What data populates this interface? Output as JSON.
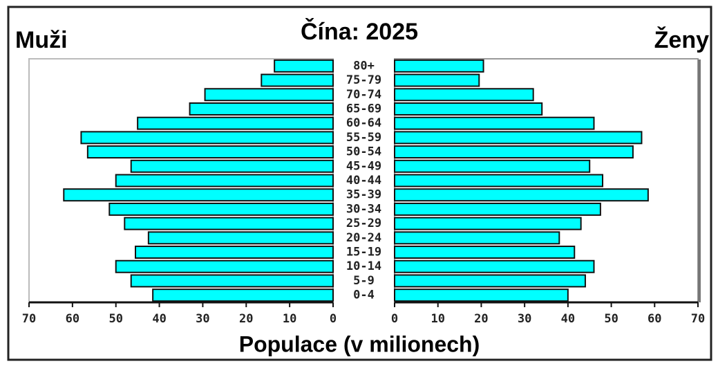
{
  "chart_data": {
    "type": "pyramid",
    "title": "Čína: 2025",
    "categories": [
      "0-4",
      "5-9",
      "10-14",
      "15-19",
      "20-24",
      "25-29",
      "30-34",
      "35-39",
      "40-44",
      "45-49",
      "50-54",
      "55-59",
      "60-64",
      "65-69",
      "70-74",
      "75-79",
      "80+"
    ],
    "series": [
      {
        "name": "Muži",
        "color": "#00ffff",
        "values": [
          41.5,
          46.5,
          50,
          45.5,
          42.5,
          48,
          51.5,
          62,
          50,
          46.5,
          56.5,
          58,
          45,
          33,
          29.5,
          16.5,
          13.5
        ]
      },
      {
        "name": "Ženy",
        "color": "#00ffff",
        "values": [
          40,
          44,
          46,
          41.5,
          38,
          43,
          47.5,
          58.5,
          48,
          45,
          55,
          57,
          46,
          34,
          32,
          19.5,
          20.5
        ]
      }
    ],
    "xlim": [
      0,
      70
    ],
    "xticks": [
      0,
      10,
      20,
      30,
      40,
      50,
      60,
      70
    ],
    "xlabel": "Populace (v milionech)"
  }
}
